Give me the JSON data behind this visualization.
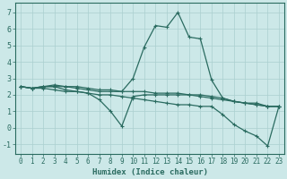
{
  "xlabel": "Humidex (Indice chaleur)",
  "bg_color": "#cce8e8",
  "line_color": "#2a6b60",
  "grid_color": "#aacfcf",
  "xlim": [
    -0.5,
    23.5
  ],
  "ylim": [
    -1.6,
    7.6
  ],
  "xticks": [
    0,
    1,
    2,
    3,
    4,
    5,
    6,
    7,
    8,
    9,
    10,
    11,
    12,
    13,
    14,
    15,
    16,
    17,
    18,
    19,
    20,
    21,
    22,
    23
  ],
  "yticks": [
    -1,
    0,
    1,
    2,
    3,
    4,
    5,
    6,
    7
  ],
  "lines": [
    {
      "x": [
        0,
        1,
        2,
        3,
        4,
        5,
        6,
        7,
        8,
        9,
        10,
        11,
        12,
        13,
        14,
        15,
        16,
        17,
        18,
        19,
        20,
        21,
        22,
        23
      ],
      "y": [
        2.5,
        2.4,
        2.5,
        2.5,
        2.5,
        2.4,
        2.3,
        2.2,
        2.2,
        2.2,
        3.0,
        4.9,
        6.2,
        6.1,
        7.0,
        5.5,
        5.4,
        2.9,
        1.8,
        1.6,
        1.5,
        1.5,
        1.3,
        1.3
      ]
    },
    {
      "x": [
        0,
        1,
        2,
        3,
        4,
        5,
        6,
        7,
        8,
        9,
        10,
        11,
        12,
        13,
        14,
        15,
        16,
        17,
        18,
        19,
        20,
        21,
        22,
        23
      ],
      "y": [
        2.5,
        2.4,
        2.5,
        2.5,
        2.3,
        2.2,
        2.1,
        1.7,
        1.0,
        0.1,
        1.9,
        2.0,
        2.0,
        2.0,
        2.0,
        2.0,
        1.9,
        1.8,
        1.7,
        1.6,
        1.5,
        1.4,
        1.3,
        1.3
      ]
    },
    {
      "x": [
        0,
        1,
        2,
        3,
        4,
        5,
        6,
        7,
        8,
        9,
        10,
        11,
        12,
        13,
        14,
        15,
        16,
        17,
        18,
        19,
        20,
        21,
        22,
        23
      ],
      "y": [
        2.5,
        2.4,
        2.5,
        2.6,
        2.5,
        2.5,
        2.4,
        2.3,
        2.3,
        2.2,
        2.2,
        2.2,
        2.1,
        2.1,
        2.1,
        2.0,
        2.0,
        1.9,
        1.8,
        1.6,
        1.5,
        1.4,
        1.3,
        1.3
      ]
    },
    {
      "x": [
        0,
        1,
        2,
        3,
        4,
        5,
        6,
        7,
        8,
        9,
        10,
        11,
        12,
        13,
        14,
        15,
        16,
        17,
        18,
        19,
        20,
        21,
        22,
        23
      ],
      "y": [
        2.5,
        2.4,
        2.4,
        2.3,
        2.2,
        2.2,
        2.1,
        2.0,
        2.0,
        1.9,
        1.8,
        1.7,
        1.6,
        1.5,
        1.4,
        1.4,
        1.3,
        1.3,
        0.8,
        0.2,
        -0.2,
        -0.5,
        -1.1,
        1.3
      ]
    }
  ],
  "tick_fontsize": 5.5,
  "xlabel_fontsize": 6.5,
  "marker_size": 2.0,
  "linewidth": 0.9
}
